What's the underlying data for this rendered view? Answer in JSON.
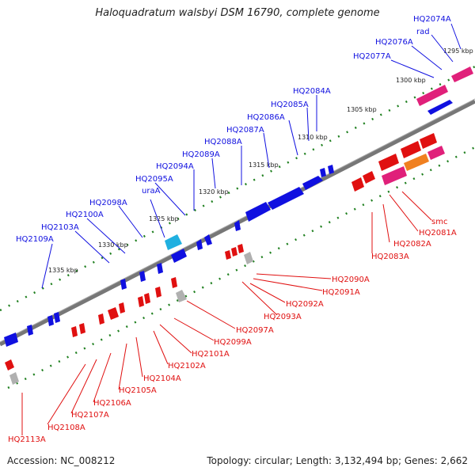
{
  "title": "Haloquadratum walsbyi DSM 16790, complete genome",
  "accession": "Accession: NC_008212",
  "topology": "Topology: circular; Length: 3,132,494 bp; Genes: 2,662",
  "colors": {
    "plus_strand": "#1010e0",
    "minus_strand": "#e01010",
    "pink": "#e0207a",
    "cyan": "#20b0e0",
    "orange": "#f08020",
    "gray": "#b0b0b0",
    "backbone": "#777777",
    "tick": "#208020"
  },
  "kbp_marks": [
    "1295 kbp",
    "1300 kbp",
    "1305 kbp",
    "1310 kbp",
    "1315 kbp",
    "1320 kbp",
    "1325 kbp",
    "1330 kbp",
    "1335 kbp"
  ],
  "top_labels": [
    "HQ2074A",
    "rad",
    "HQ2076A",
    "HQ2077A",
    "HQ2084A",
    "HQ2085A",
    "HQ2086A",
    "HQ2087A",
    "HQ2088A",
    "HQ2089A",
    "HQ2094A",
    "HQ2095A",
    "uraA",
    "HQ2098A",
    "HQ2100A",
    "HQ2103A",
    "HQ2109A"
  ],
  "bottom_labels": [
    "smc",
    "HQ2081A",
    "HQ2082A",
    "HQ2083A",
    "HQ2090A",
    "HQ2091A",
    "HQ2092A",
    "HQ2093A",
    "HQ2097A",
    "HQ2099A",
    "HQ2101A",
    "HQ2102A",
    "HQ2104A",
    "HQ2105A",
    "HQ2106A",
    "HQ2107A",
    "HQ2108A",
    "HQ2113A"
  ]
}
